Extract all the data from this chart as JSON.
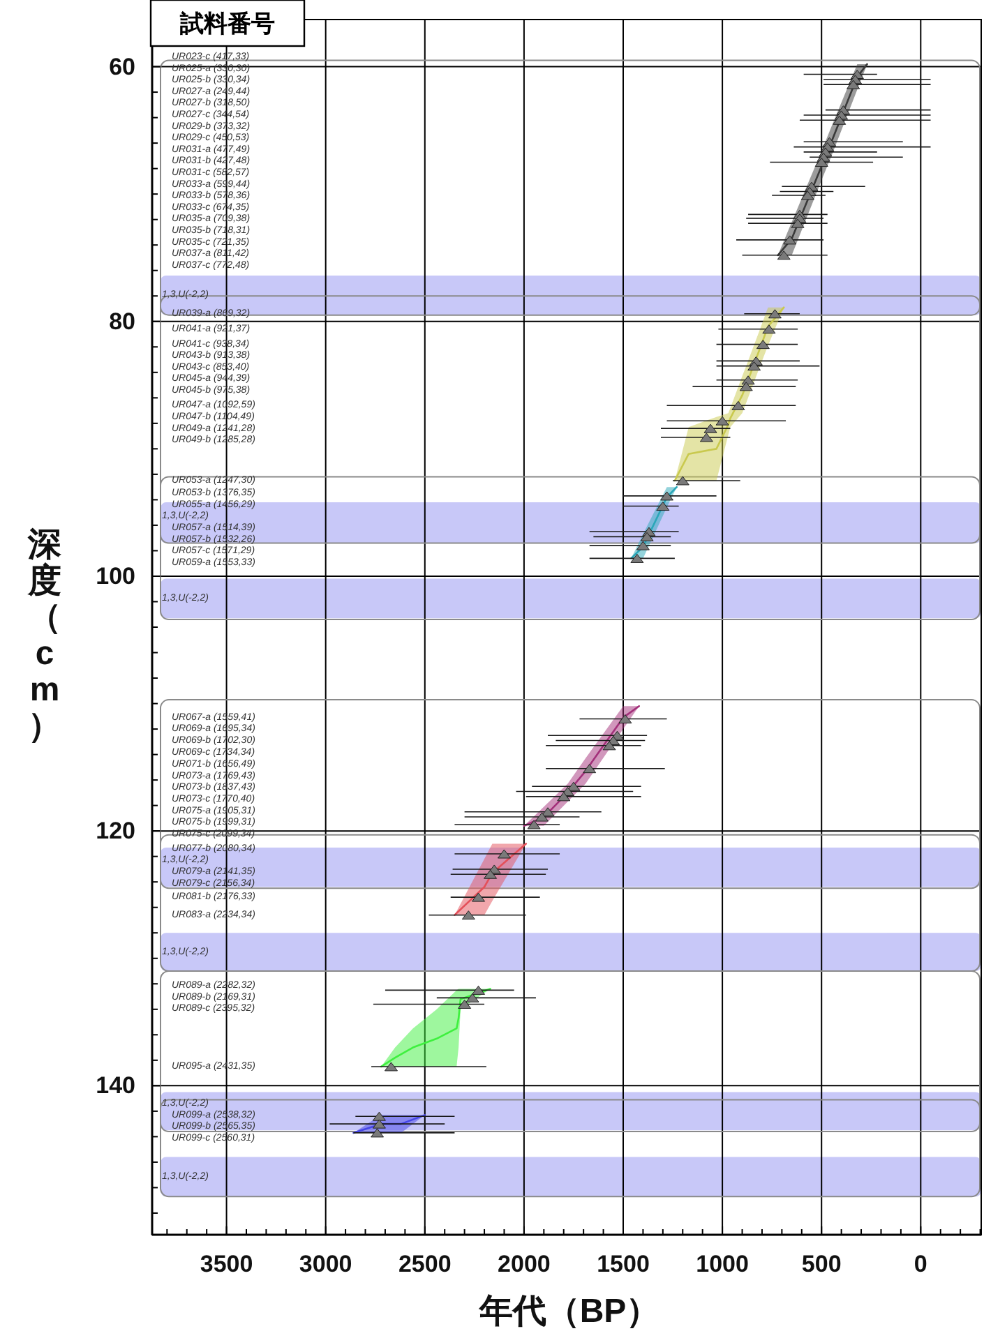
{
  "chart_data": {
    "type": "scatter",
    "title": "試料番号",
    "xlabel": "年代（BP）",
    "ylabel": "深度（cm）",
    "xlim": [
      3875,
      -305
    ],
    "ylim": [
      151.7,
      56.3
    ],
    "xticks": [
      {
        "value": 3800,
        "label": null
      },
      {
        "value": 3700,
        "label": null
      },
      {
        "value": 3600,
        "label": null
      },
      3500,
      {
        "value": 3400,
        "label": null
      },
      {
        "value": 3300,
        "label": null
      },
      {
        "value": 3200,
        "label": null
      },
      {
        "value": 3100,
        "label": null
      },
      3000,
      {
        "value": 2900,
        "label": null
      },
      {
        "value": 2800,
        "label": null
      },
      {
        "value": 2700,
        "label": null
      },
      {
        "value": 2600,
        "label": null
      },
      2500,
      {
        "value": 2400,
        "label": null
      },
      {
        "value": 2300,
        "label": null
      },
      {
        "value": 2200,
        "label": null
      },
      {
        "value": 2100,
        "label": null
      },
      2000,
      {
        "value": 1900,
        "label": null
      },
      {
        "value": 1800,
        "label": null
      },
      {
        "value": 1700,
        "label": null
      },
      {
        "value": 1600,
        "label": null
      },
      1500,
      {
        "value": 1400,
        "label": null
      },
      {
        "value": 1300,
        "label": null
      },
      {
        "value": 1200,
        "label": null
      },
      {
        "value": 1100,
        "label": null
      },
      1000,
      {
        "value": 900,
        "label": null
      },
      {
        "value": 800,
        "label": null
      },
      {
        "value": 700,
        "label": null
      },
      {
        "value": 600,
        "label": null
      },
      500,
      {
        "value": 400,
        "label": null
      },
      {
        "value": 300,
        "label": null
      },
      {
        "value": 200,
        "label": null
      },
      {
        "value": 100,
        "label": null
      },
      0,
      {
        "value": -100,
        "label": null
      },
      {
        "value": -200,
        "label": null
      },
      {
        "value": -300,
        "label": null
      }
    ],
    "yticks": [
      60,
      {
        "value": 62,
        "label": null
      },
      {
        "value": 64,
        "label": null
      },
      {
        "value": 66,
        "label": null
      },
      {
        "value": 68,
        "label": null
      },
      {
        "value": 70,
        "label": null
      },
      {
        "value": 72,
        "label": null
      },
      {
        "value": 74,
        "label": null
      },
      {
        "value": 76,
        "label": null
      },
      {
        "value": 78,
        "label": null
      },
      80,
      {
        "value": 82,
        "label": null
      },
      {
        "value": 84,
        "label": null
      },
      {
        "value": 86,
        "label": null
      },
      {
        "value": 88,
        "label": null
      },
      {
        "value": 90,
        "label": null
      },
      {
        "value": 92,
        "label": null
      },
      {
        "value": 94,
        "label": null
      },
      {
        "value": 96,
        "label": null
      },
      {
        "value": 98,
        "label": null
      },
      100,
      {
        "value": 102,
        "label": null
      },
      {
        "value": 104,
        "label": null
      },
      {
        "value": 106,
        "label": null
      },
      {
        "value": 108,
        "label": null
      },
      {
        "value": 110,
        "label": null
      },
      {
        "value": 112,
        "label": null
      },
      {
        "value": 114,
        "label": null
      },
      {
        "value": 116,
        "label": null
      },
      {
        "value": 118,
        "label": null
      },
      120,
      {
        "value": 122,
        "label": null
      },
      {
        "value": 124,
        "label": null
      },
      {
        "value": 126,
        "label": null
      },
      {
        "value": 128,
        "label": null
      },
      {
        "value": 130,
        "label": null
      },
      {
        "value": 132,
        "label": null
      },
      {
        "value": 134,
        "label": null
      },
      {
        "value": 136,
        "label": null
      },
      {
        "value": 138,
        "label": null
      },
      140,
      {
        "value": 142,
        "label": null
      },
      {
        "value": 144,
        "label": null
      },
      {
        "value": 146,
        "label": null
      },
      {
        "value": 148,
        "label": null
      },
      {
        "value": 150,
        "label": null
      }
    ],
    "grid": true,
    "series": [
      {
        "type": "line",
        "marker": "none",
        "color": "#3a3a3a",
        "x": [
          270,
          320,
          450,
          510,
          650,
          720
        ],
        "values": [
          59.8,
          60.8,
          65.9,
          68.2,
          73.5,
          74.8
        ],
        "lower": [
          59.8,
          59.8,
          64.7,
          67.0,
          72.2,
          74.8
        ],
        "upper": [
          59.8,
          61.8,
          67.0,
          69.3,
          74.8,
          74.8
        ]
      },
      {
        "type": "line",
        "marker": "none",
        "color": "#c9c94e",
        "x": [
          690,
          770,
          810,
          880,
          900,
          960,
          970,
          1030,
          1170,
          1240
        ],
        "values": [
          78.9,
          80.4,
          82.1,
          85.0,
          85.8,
          87.6,
          88.1,
          90.0,
          90.4,
          92.5
        ],
        "lower": [
          78.9,
          78.9,
          80.6,
          83.5,
          84.3,
          86.8,
          87.2,
          87.5,
          88.3,
          92.5
        ],
        "upper": [
          78.9,
          81.9,
          83.5,
          86.4,
          87.2,
          88.3,
          88.9,
          92.5,
          92.5,
          92.5
        ]
      },
      {
        "type": "line",
        "marker": "none",
        "color": "#2aa7b8",
        "x": [
          1230,
          1280,
          1400,
          1460
        ],
        "values": [
          93.0,
          93.8,
          97.7,
          98.6
        ],
        "lower": [
          93.0,
          93.0,
          96.7,
          98.6
        ],
        "upper": [
          93.0,
          94.6,
          98.6,
          98.6
        ]
      },
      {
        "type": "line",
        "marker": "none",
        "color": "#a3307a",
        "x": [
          1420,
          1500,
          1690,
          1780,
          1900,
          2000
        ],
        "values": [
          110.2,
          111.1,
          115.3,
          117.0,
          118.9,
          119.6
        ],
        "lower": [
          110.2,
          110.2,
          114.3,
          116.3,
          118.1,
          119.6
        ],
        "upper": [
          110.2,
          112.0,
          116.3,
          117.7,
          119.6,
          119.6
        ]
      },
      {
        "type": "line",
        "marker": "none",
        "color": "#e4505a",
        "x": [
          1990,
          2160,
          2200,
          2350
        ],
        "values": [
          121.0,
          123.3,
          124.4,
          126.6
        ],
        "lower": [
          121.0,
          121.0,
          122.2,
          126.6
        ],
        "upper": [
          121.0,
          125.5,
          126.6,
          126.6
        ]
      },
      {
        "type": "line",
        "marker": "none",
        "color": "#3ef03e",
        "x": [
          2170,
          2320,
          2330,
          2340,
          2440,
          2560,
          2650,
          2720
        ],
        "values": [
          132.4,
          133.2,
          134.7,
          135.5,
          136.3,
          137.0,
          137.8,
          138.5
        ],
        "lower": [
          132.4,
          132.4,
          132.4,
          132.5,
          134.0,
          135.5,
          137.0,
          138.5
        ],
        "upper": [
          132.4,
          134.0,
          137.0,
          138.5,
          138.5,
          138.5,
          138.5,
          138.5
        ]
      },
      {
        "type": "line",
        "marker": "none",
        "color": "#4646e6",
        "x": [
          2500,
          2620,
          2720,
          2860
        ],
        "values": [
          142.3,
          143.0,
          143.0,
          143.7
        ],
        "lower": [
          142.3,
          142.3,
          142.3,
          143.7
        ],
        "upper": [
          142.3,
          143.7,
          143.7,
          143.7
        ]
      },
      {
        "marker": "triangle",
        "color": "#7a7a7a",
        "x": [
          320,
          330,
          340,
          390,
          400,
          410,
          460,
          470,
          480,
          490,
          500,
          550,
          560,
          570,
          610,
          610,
          620,
          660,
          690,
          735,
          765,
          795,
          830,
          840,
          870,
          880,
          920,
          1000,
          1060,
          1080,
          1200,
          1280,
          1300,
          1370,
          1380,
          1400,
          1430,
          1490,
          1530,
          1550,
          1570,
          1670,
          1750,
          1780,
          1800,
          1880,
          1910,
          1950,
          2100,
          2150,
          2170,
          2230,
          2280,
          2230,
          2260,
          2300,
          2670,
          2730,
          2730,
          2740
        ],
        "values": [
          60.6,
          61.0,
          61.4,
          63.4,
          63.8,
          64.2,
          65.9,
          66.3,
          66.7,
          67.1,
          67.5,
          69.4,
          69.8,
          70.1,
          71.6,
          71.9,
          72.3,
          73.6,
          74.8,
          79.4,
          80.6,
          81.8,
          83.1,
          83.5,
          84.6,
          85.1,
          86.6,
          87.8,
          88.4,
          89.1,
          92.5,
          93.7,
          94.5,
          96.5,
          96.9,
          97.6,
          98.6,
          111.2,
          112.5,
          112.9,
          113.3,
          115.1,
          116.5,
          116.9,
          117.3,
          118.5,
          118.9,
          119.5,
          121.8,
          123.0,
          123.4,
          125.2,
          126.6,
          132.5,
          133.1,
          133.6,
          138.5,
          142.4,
          143.0,
          143.7
        ],
        "xerrors": [
          [
            220,
            590
          ],
          [
            -50,
            490
          ],
          [
            -50,
            490
          ],
          [
            -50,
            480
          ],
          [
            -50,
            590
          ],
          [
            -50,
            610
          ],
          [
            90,
            590
          ],
          [
            -50,
            640
          ],
          [
            220,
            590
          ],
          [
            90,
            560
          ],
          [
            240,
            760
          ],
          [
            280,
            700
          ],
          [
            440,
            710
          ],
          [
            480,
            750
          ],
          [
            470,
            870
          ],
          [
            490,
            880
          ],
          [
            470,
            870
          ],
          [
            490,
            930
          ],
          [
            470,
            900
          ],
          [
            610,
            890
          ],
          [
            620,
            1020
          ],
          [
            620,
            1030
          ],
          [
            610,
            1030
          ],
          [
            510,
            1030
          ],
          [
            620,
            1030
          ],
          [
            630,
            1150
          ],
          [
            630,
            1280
          ],
          [
            680,
            1280
          ],
          [
            960,
            1310
          ],
          [
            960,
            1310
          ],
          [
            910,
            1250
          ],
          [
            1030,
            1500
          ],
          [
            1220,
            1500
          ],
          [
            1220,
            1670
          ],
          [
            1260,
            1650
          ],
          [
            1260,
            1670
          ],
          [
            1240,
            1670
          ],
          [
            1280,
            1720
          ],
          [
            1380,
            1880
          ],
          [
            1390,
            1840
          ],
          [
            1410,
            1890
          ],
          [
            1290,
            1890
          ],
          [
            1410,
            1960
          ],
          [
            1450,
            2040
          ],
          [
            1410,
            1990
          ],
          [
            1610,
            2300
          ],
          [
            1720,
            2300
          ],
          [
            1820,
            2350
          ],
          [
            1820,
            2350
          ],
          [
            1880,
            2360
          ],
          [
            1890,
            2370
          ],
          [
            1920,
            2370
          ],
          [
            1990,
            2480
          ],
          [
            2050,
            2700
          ],
          [
            1940,
            2440
          ],
          [
            2200,
            2760
          ],
          [
            2190,
            2770
          ],
          [
            2350,
            2850
          ],
          [
            2400,
            2980
          ],
          [
            2350,
            2860
          ]
        ]
      }
    ],
    "bands": [
      {
        "axis": "y",
        "from": 76.4,
        "to": 79.5,
        "label": "1,3,U(-2,2)",
        "color": "#c8c8f8"
      },
      {
        "axis": "y",
        "from": 94.2,
        "to": 97.4,
        "label": "1,3,U(-2,2)",
        "color": "#c8c8f8"
      },
      {
        "axis": "y",
        "from": 100.2,
        "to": 103.3,
        "label": "1,3,U(-2,2)",
        "color": "#c8c8f8"
      },
      {
        "axis": "y",
        "from": 121.3,
        "to": 124.4,
        "label": "1,3,U(-2,2)",
        "color": "#c8c8f8"
      },
      {
        "axis": "y",
        "from": 128.0,
        "to": 131.0,
        "label": "1,3,U(-2,2)",
        "color": "#c8c8f8"
      },
      {
        "axis": "y",
        "from": 140.5,
        "to": 143.5,
        "label": "1,3,U(-2,2)",
        "color": "#c8c8f8"
      },
      {
        "axis": "y",
        "from": 145.6,
        "to": 148.7,
        "label": "1,3,U(-2,2)",
        "color": "#c8c8f8"
      }
    ],
    "annotations": [
      "UR023-c (417,33)",
      "UR025-a (330,30)",
      "UR025-b (330,34)",
      "UR027-a (249,44)",
      "UR027-b (318,50)",
      "UR027-c (344,54)",
      "UR029-b (373,32)",
      "UR029-c (450,53)",
      "UR031-a (477,49)",
      "UR031-b (427,48)",
      "UR031-c (582,57)",
      "UR033-a (599,44)",
      "UR033-b (578,36)",
      "UR033-c (674,35)",
      "UR035-a (709,38)",
      "UR035-b (718,31)",
      "UR035-c (721,35)",
      "UR037-a (811,42)",
      "UR037-c (772,48)",
      "UR039-a (869,32)",
      "UR041-a (921,37)",
      "UR041-c (938,34)",
      "UR043-b (913,38)",
      "UR043-c (853,40)",
      "UR045-a (944,39)",
      "UR045-b (975,38)",
      "UR047-a (1092,59)",
      "UR047-b (1104,49)",
      "UR049-a (1241,28)",
      "UR049-b (1285,28)",
      "UR053-a (1247,30)",
      "UR053-b (1376,35)",
      "UR055-a (1456,29)",
      "UR057-a (1514,39)",
      "UR057-b (1532,26)",
      "UR057-c (1571,29)",
      "UR059-a (1553,33)",
      "UR067-a (1559,41)",
      "UR069-a (1695,34)",
      "UR069-b (1702,30)",
      "UR069-c (1734,34)",
      "UR071-b (1656,49)",
      "UR073-a (1769,43)",
      "UR073-b (1837,43)",
      "UR073-c (1770,40)",
      "UR075-a (1905,31)",
      "UR075-b (1999,31)",
      "UR075-c (2099,34)",
      "UR077-b (2080,34)",
      "UR079-a (2141,35)",
      "UR079-c (2156,34)",
      "UR081-b (2176,33)",
      "UR083-a (2234,34)",
      "UR089-a (2282,32)",
      "UR089-b (2169,31)",
      "UR089-c (2395,32)",
      "UR095-a (2431,35)",
      "UR099-a (2538,32)",
      "UR099-b (2565,35)",
      "UR099-c (2560,31)"
    ]
  }
}
